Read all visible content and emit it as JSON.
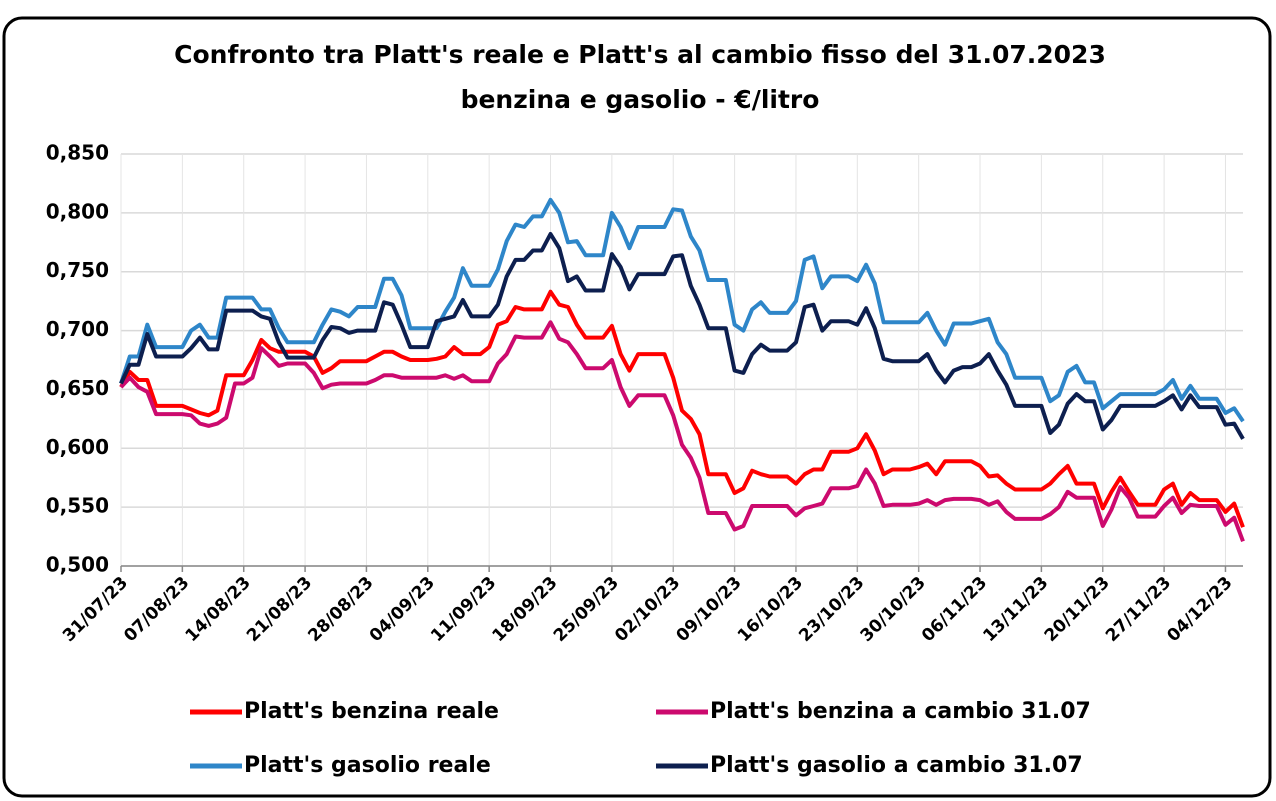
{
  "chart_data": {
    "type": "line",
    "title": "Confronto tra Platt's reale e Platt's al cambio fisso del 31.07.2023",
    "subtitle": "benzina e gasolio - €/litro",
    "categories": [
      "31/07/23",
      null,
      null,
      null,
      null,
      null,
      null,
      "07/08/23",
      null,
      null,
      null,
      null,
      null,
      null,
      "14/08/23",
      null,
      null,
      null,
      null,
      null,
      null,
      "21/08/23",
      null,
      null,
      null,
      null,
      null,
      null,
      "28/08/23",
      null,
      null,
      null,
      null,
      null,
      null,
      "04/09/23",
      null,
      null,
      null,
      null,
      null,
      null,
      "11/09/23",
      null,
      null,
      null,
      null,
      null,
      null,
      "18/09/23",
      null,
      null,
      null,
      null,
      null,
      null,
      "25/09/23",
      null,
      null,
      null,
      null,
      null,
      null,
      "02/10/23",
      null,
      null,
      null,
      null,
      null,
      null,
      "09/10/23",
      null,
      null,
      null,
      null,
      null,
      null,
      "16/10/23",
      null,
      null,
      null,
      null,
      null,
      null,
      "23/10/23",
      null,
      null,
      null,
      null,
      null,
      null,
      "30/10/23",
      null,
      null,
      null,
      null,
      null,
      null,
      "06/11/23",
      null,
      null,
      null,
      null,
      null,
      null,
      "13/11/23",
      null,
      null,
      null,
      null,
      null,
      null,
      "20/11/23",
      null,
      null,
      null,
      null,
      null,
      null,
      "27/11/23",
      null,
      null,
      null,
      null,
      null,
      null,
      "04/12/23",
      null,
      null
    ],
    "series": [
      {
        "name": "Platt's benzina reale",
        "color": "#ff0000",
        "values": [
          0.652,
          0.665,
          0.658,
          0.658,
          0.636,
          0.636,
          0.636,
          0.636,
          0.633,
          0.63,
          0.628,
          0.632,
          0.662,
          0.662,
          0.662,
          0.675,
          0.692,
          0.685,
          0.682,
          0.682,
          0.682,
          0.682,
          0.678,
          0.664,
          0.668,
          0.674,
          0.674,
          0.674,
          0.674,
          0.678,
          0.682,
          0.682,
          0.678,
          0.675,
          0.675,
          0.675,
          0.676,
          0.678,
          0.686,
          0.68,
          0.68,
          0.68,
          0.686,
          0.705,
          0.708,
          0.72,
          0.718,
          0.718,
          0.718,
          0.733,
          0.722,
          0.72,
          0.705,
          0.694,
          0.694,
          0.694,
          0.704,
          0.68,
          0.666,
          0.68,
          0.68,
          0.68,
          0.68,
          0.66,
          0.632,
          0.625,
          0.612,
          0.578,
          0.578,
          0.578,
          0.562,
          0.566,
          0.581,
          0.578,
          0.576,
          0.576,
          0.576,
          0.57,
          0.578,
          0.582,
          0.582,
          0.597,
          0.597,
          0.597,
          0.6,
          0.612,
          0.598,
          0.578,
          0.582,
          0.582,
          0.582,
          0.584,
          0.587,
          0.578,
          0.589,
          0.589,
          0.589,
          0.589,
          0.585,
          0.576,
          0.577,
          0.57,
          0.565,
          0.565,
          0.565,
          0.565,
          0.57,
          0.578,
          0.585,
          0.57,
          0.57,
          0.57,
          0.549,
          0.563,
          0.575,
          0.563,
          0.552,
          0.552,
          0.552,
          0.565,
          0.57,
          0.552,
          0.562,
          0.556,
          0.556,
          0.556,
          0.546,
          0.553,
          0.533
        ]
      },
      {
        "name": "Platt's benzina a cambio 31.07",
        "color": "#cc0a6e",
        "values": [
          0.652,
          0.66,
          0.652,
          0.648,
          0.629,
          0.629,
          0.629,
          0.629,
          0.628,
          0.621,
          0.619,
          0.621,
          0.626,
          0.655,
          0.655,
          0.66,
          0.685,
          0.678,
          0.67,
          0.672,
          0.672,
          0.672,
          0.664,
          0.651,
          0.654,
          0.655,
          0.655,
          0.655,
          0.655,
          0.658,
          0.662,
          0.662,
          0.66,
          0.66,
          0.66,
          0.66,
          0.66,
          0.662,
          0.659,
          0.662,
          0.657,
          0.657,
          0.657,
          0.672,
          0.68,
          0.695,
          0.694,
          0.694,
          0.694,
          0.707,
          0.693,
          0.69,
          0.68,
          0.668,
          0.668,
          0.668,
          0.675,
          0.652,
          0.636,
          0.645,
          0.645,
          0.645,
          0.645,
          0.628,
          0.603,
          0.592,
          0.575,
          0.545,
          0.545,
          0.545,
          0.531,
          0.534,
          0.551,
          0.551,
          0.551,
          0.551,
          0.551,
          0.543,
          0.549,
          0.551,
          0.553,
          0.566,
          0.566,
          0.566,
          0.568,
          0.582,
          0.57,
          0.551,
          0.552,
          0.552,
          0.552,
          0.553,
          0.556,
          0.552,
          0.556,
          0.557,
          0.557,
          0.557,
          0.556,
          0.552,
          0.555,
          0.546,
          0.54,
          0.54,
          0.54,
          0.54,
          0.544,
          0.55,
          0.563,
          0.558,
          0.558,
          0.558,
          0.534,
          0.548,
          0.567,
          0.558,
          0.542,
          0.542,
          0.542,
          0.551,
          0.558,
          0.545,
          0.552,
          0.551,
          0.551,
          0.551,
          0.535,
          0.541,
          0.521
        ]
      },
      {
        "name": "Platt's gasolio reale",
        "color": "#2e86c9",
        "values": [
          0.655,
          0.678,
          0.678,
          0.705,
          0.686,
          0.686,
          0.686,
          0.686,
          0.7,
          0.705,
          0.694,
          0.694,
          0.728,
          0.728,
          0.728,
          0.728,
          0.718,
          0.718,
          0.702,
          0.69,
          0.69,
          0.69,
          0.69,
          0.705,
          0.718,
          0.716,
          0.712,
          0.72,
          0.72,
          0.72,
          0.744,
          0.744,
          0.73,
          0.702,
          0.702,
          0.702,
          0.702,
          0.716,
          0.728,
          0.753,
          0.738,
          0.738,
          0.738,
          0.752,
          0.776,
          0.79,
          0.788,
          0.797,
          0.797,
          0.811,
          0.8,
          0.775,
          0.776,
          0.764,
          0.764,
          0.764,
          0.8,
          0.788,
          0.77,
          0.788,
          0.788,
          0.788,
          0.788,
          0.803,
          0.802,
          0.78,
          0.768,
          0.743,
          0.743,
          0.743,
          0.705,
          0.7,
          0.718,
          0.724,
          0.715,
          0.715,
          0.715,
          0.725,
          0.76,
          0.763,
          0.736,
          0.746,
          0.746,
          0.746,
          0.742,
          0.756,
          0.74,
          0.707,
          0.707,
          0.707,
          0.707,
          0.707,
          0.715,
          0.7,
          0.688,
          0.706,
          0.706,
          0.706,
          0.708,
          0.71,
          0.69,
          0.68,
          0.66,
          0.66,
          0.66,
          0.66,
          0.64,
          0.645,
          0.665,
          0.67,
          0.656,
          0.656,
          0.634,
          0.64,
          0.646,
          0.646,
          0.646,
          0.646,
          0.646,
          0.65,
          0.658,
          0.642,
          0.653,
          0.642,
          0.642,
          0.642,
          0.63,
          0.634,
          0.623
        ]
      },
      {
        "name": "Platt's gasolio a cambio 31.07",
        "color": "#0d1f4f",
        "values": [
          0.655,
          0.671,
          0.671,
          0.697,
          0.678,
          0.678,
          0.678,
          0.678,
          0.685,
          0.694,
          0.684,
          0.684,
          0.717,
          0.717,
          0.717,
          0.717,
          0.712,
          0.71,
          0.69,
          0.677,
          0.677,
          0.677,
          0.677,
          0.692,
          0.703,
          0.702,
          0.698,
          0.7,
          0.7,
          0.7,
          0.724,
          0.722,
          0.705,
          0.686,
          0.686,
          0.686,
          0.708,
          0.71,
          0.712,
          0.726,
          0.712,
          0.712,
          0.712,
          0.722,
          0.746,
          0.76,
          0.76,
          0.768,
          0.768,
          0.782,
          0.77,
          0.742,
          0.746,
          0.734,
          0.734,
          0.734,
          0.765,
          0.754,
          0.735,
          0.748,
          0.748,
          0.748,
          0.748,
          0.763,
          0.764,
          0.738,
          0.722,
          0.702,
          0.702,
          0.702,
          0.666,
          0.664,
          0.68,
          0.688,
          0.683,
          0.683,
          0.683,
          0.69,
          0.72,
          0.722,
          0.7,
          0.708,
          0.708,
          0.708,
          0.705,
          0.719,
          0.702,
          0.676,
          0.674,
          0.674,
          0.674,
          0.674,
          0.68,
          0.666,
          0.656,
          0.666,
          0.669,
          0.669,
          0.672,
          0.68,
          0.666,
          0.654,
          0.636,
          0.636,
          0.636,
          0.636,
          0.613,
          0.62,
          0.638,
          0.646,
          0.64,
          0.64,
          0.616,
          0.624,
          0.636,
          0.636,
          0.636,
          0.636,
          0.636,
          0.64,
          0.645,
          0.633,
          0.645,
          0.635,
          0.635,
          0.635,
          0.62,
          0.621,
          0.608
        ]
      }
    ],
    "ylim": [
      0.5,
      0.85
    ],
    "yticks": [
      {
        "value": 0.5,
        "label": "0,500"
      },
      {
        "value": 0.55,
        "label": "0,550"
      },
      {
        "value": 0.6,
        "label": "0,600"
      },
      {
        "value": 0.65,
        "label": "0,650"
      },
      {
        "value": 0.7,
        "label": "0,700"
      },
      {
        "value": 0.75,
        "label": "0,750"
      },
      {
        "value": 0.8,
        "label": "0,800"
      },
      {
        "value": 0.85,
        "label": "0,850"
      }
    ],
    "grid": true,
    "legend": "bottom"
  }
}
